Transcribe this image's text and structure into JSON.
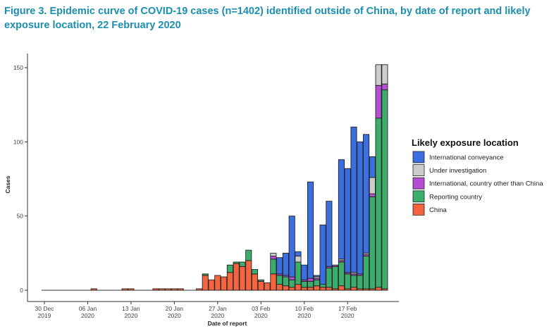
{
  "figure": {
    "title": "Figure 3. Epidemic curve of COVID-19 cases (n=1402) identified outside of China, by date of report and likely exposure location, 22 February 2020"
  },
  "chart_data": {
    "type": "bar",
    "stacked": true,
    "xlabel": "Date of report",
    "ylabel": "Cases",
    "ylim": [
      0,
      160
    ],
    "yticks": [
      0,
      50,
      100,
      150
    ],
    "x_start_date": "2019-12-30",
    "xtick_labels": [
      {
        "line1": "30 Dec",
        "line2": "2019",
        "day": 0
      },
      {
        "line1": "06 Jan",
        "line2": "2020",
        "day": 7
      },
      {
        "line1": "13 Jan",
        "line2": "2020",
        "day": 14
      },
      {
        "line1": "20 Jan",
        "line2": "2020",
        "day": 21
      },
      {
        "line1": "27 Jan",
        "line2": "2020",
        "day": 28
      },
      {
        "line1": "03 Feb",
        "line2": "2020",
        "day": 35
      },
      {
        "line1": "10 Feb",
        "line2": "2020",
        "day": 42
      },
      {
        "line1": "17 Feb",
        "line2": "2020",
        "day": 49
      }
    ],
    "grid": false,
    "legend": {
      "title": "Likely exposure location",
      "position": "right",
      "entries": [
        {
          "key": "conveyance",
          "label": "International conveyance",
          "color": "#3b6fe0"
        },
        {
          "key": "investigation",
          "label": "Under investigation",
          "color": "#cccccc"
        },
        {
          "key": "international",
          "label": "International, country other than China",
          "color": "#b44fd4"
        },
        {
          "key": "reporting",
          "label": "Reporting country",
          "color": "#3aae6a"
        },
        {
          "key": "china",
          "label": "China",
          "color": "#f4643f"
        }
      ]
    },
    "stack_order": [
      "china",
      "reporting",
      "international",
      "investigation",
      "conveyance"
    ],
    "bars": [
      {
        "day": 8,
        "china": 1
      },
      {
        "day": 13,
        "china": 1
      },
      {
        "day": 14,
        "china": 1
      },
      {
        "day": 18,
        "china": 1
      },
      {
        "day": 19,
        "china": 1
      },
      {
        "day": 20,
        "china": 1
      },
      {
        "day": 21,
        "china": 1
      },
      {
        "day": 22,
        "china": 1
      },
      {
        "day": 25,
        "china": 1
      },
      {
        "day": 26,
        "china": 10,
        "reporting": 1
      },
      {
        "day": 27,
        "china": 7
      },
      {
        "day": 28,
        "china": 10
      },
      {
        "day": 29,
        "china": 9
      },
      {
        "day": 30,
        "china": 12,
        "reporting": 5
      },
      {
        "day": 31,
        "china": 18,
        "reporting": 1
      },
      {
        "day": 32,
        "china": 16,
        "reporting": 3
      },
      {
        "day": 33,
        "china": 20,
        "reporting": 7
      },
      {
        "day": 34,
        "china": 11,
        "reporting": 3
      },
      {
        "day": 35,
        "china": 6,
        "reporting": 1
      },
      {
        "day": 36,
        "china": 5
      },
      {
        "day": 37,
        "china": 11,
        "reporting": 10,
        "international": 2,
        "investigation": 2
      },
      {
        "day": 38,
        "china": 4,
        "reporting": 6,
        "international": 1,
        "conveyance": 11
      },
      {
        "day": 39,
        "china": 3,
        "reporting": 6,
        "international": 1,
        "conveyance": 15
      },
      {
        "day": 40,
        "china": 2,
        "reporting": 5,
        "international": 2,
        "conveyance": 41
      },
      {
        "day": 41,
        "china": 4,
        "reporting": 15,
        "investigation": 4,
        "conveyance": 3
      },
      {
        "day": 42,
        "china": 2,
        "reporting": 4,
        "international": 1,
        "conveyance": 10
      },
      {
        "day": 43,
        "china": 2,
        "reporting": 4,
        "international": 2,
        "conveyance": 65
      },
      {
        "day": 44,
        "china": 3,
        "reporting": 4,
        "international": 1,
        "investigation": 1,
        "conveyance": 1
      },
      {
        "day": 45,
        "china": 2,
        "reporting": 2,
        "conveyance": 40
      },
      {
        "day": 46,
        "china": 2,
        "reporting": 13,
        "international": 1,
        "conveyance": 44
      },
      {
        "day": 47,
        "china": 1,
        "reporting": 15,
        "international": 1
      },
      {
        "day": 48,
        "china": 3,
        "reporting": 16,
        "international": 1,
        "investigation": 1,
        "conveyance": 67
      },
      {
        "day": 49,
        "china": 1,
        "reporting": 10,
        "international": 1,
        "conveyance": 70
      },
      {
        "day": 50,
        "china": 2,
        "reporting": 8,
        "international": 1,
        "investigation": 1,
        "conveyance": 98
      },
      {
        "day": 51,
        "china": 1,
        "reporting": 9,
        "international": 1,
        "conveyance": 89
      },
      {
        "day": 52,
        "china": 1,
        "reporting": 22,
        "international": 1,
        "investigation": 1,
        "conveyance": 80
      },
      {
        "day": 53,
        "china": 1,
        "reporting": 62,
        "international": 2,
        "investigation": 11,
        "conveyance": 14
      },
      {
        "day": 54,
        "china": 2,
        "reporting": 114,
        "international": 22,
        "investigation": 14
      },
      {
        "day": 55,
        "china": 1,
        "reporting": 134,
        "international": 4,
        "investigation": 13
      }
    ]
  }
}
